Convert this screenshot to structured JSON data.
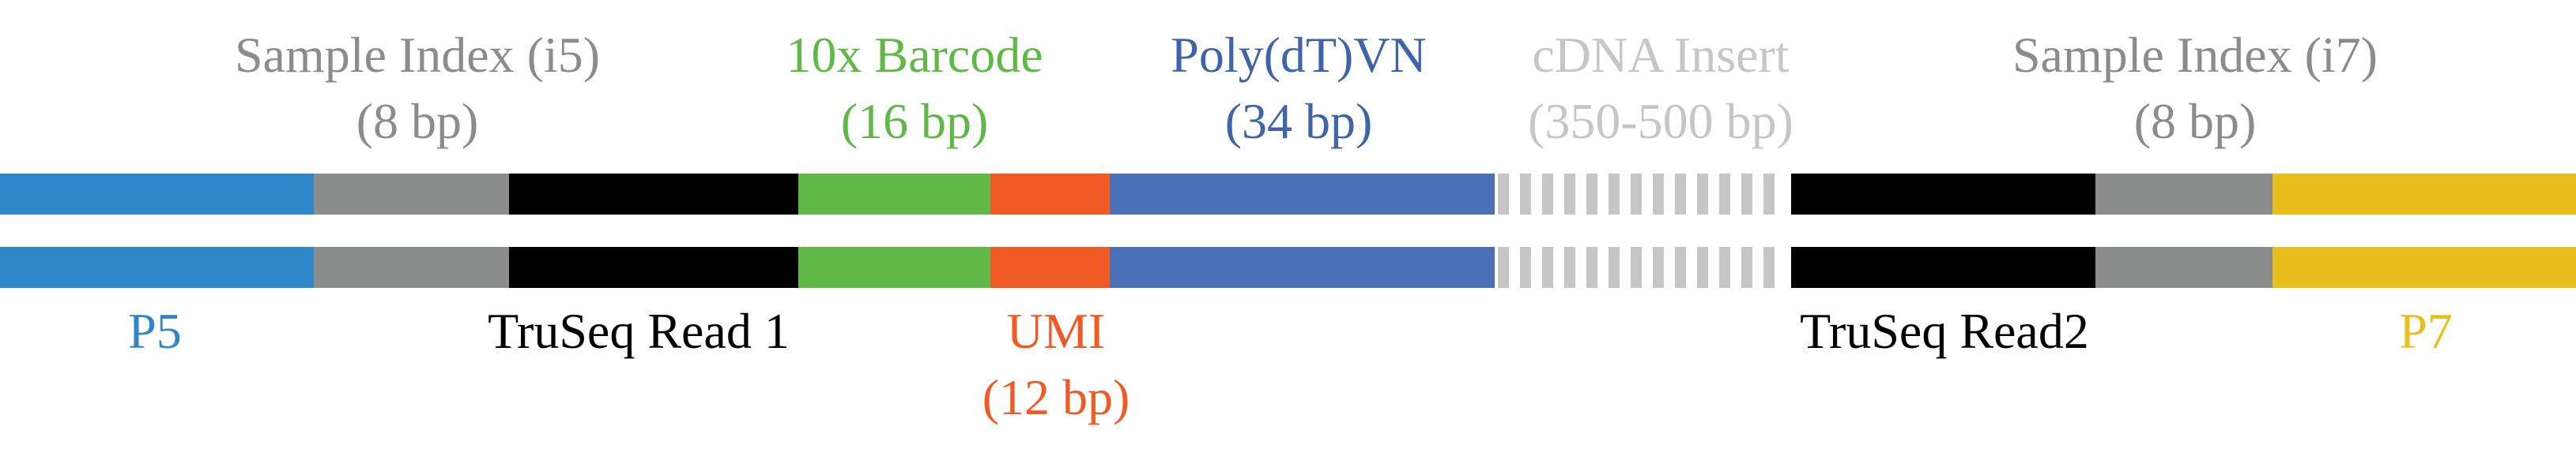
{
  "colors": {
    "p5": "#2f86c8",
    "index": "#8b8c8c",
    "truseq": "#000000",
    "barcode": "#60b947",
    "umi": "#f05a24",
    "polydt": "#4a71b8",
    "cdna": "#c6c6c6",
    "p7": "#e9bf1d",
    "label_index": "#8b8c8c",
    "label_barcode": "#60b947",
    "label_polydt": "#3f64a8",
    "label_cdna": "#c6c6c6",
    "label_p5": "#2f86c8",
    "label_truseq": "#000000",
    "label_umi": "#f05a24",
    "label_p7": "#e9bf1d"
  },
  "segments": [
    {
      "name": "p5",
      "color_key": "p5",
      "pattern": "solid"
    },
    {
      "name": "sample-index-i5",
      "color_key": "index",
      "pattern": "solid"
    },
    {
      "name": "truseq-read-1",
      "color_key": "truseq",
      "pattern": "solid"
    },
    {
      "name": "10x-barcode",
      "color_key": "barcode",
      "pattern": "solid"
    },
    {
      "name": "umi",
      "color_key": "umi",
      "pattern": "solid"
    },
    {
      "name": "poly-dt-vn",
      "color_key": "polydt",
      "pattern": "solid"
    },
    {
      "name": "cdna-insert",
      "color_key": "cdna",
      "pattern": "dashed"
    },
    {
      "name": "truseq-read-2",
      "color_key": "truseq",
      "pattern": "solid"
    },
    {
      "name": "sample-index-i7",
      "color_key": "index",
      "pattern": "solid"
    },
    {
      "name": "p7",
      "color_key": "p7",
      "pattern": "solid"
    }
  ],
  "labels_top": {
    "index_i5": {
      "line1": "Sample Index (i5)",
      "line2": "(8 bp)"
    },
    "barcode": {
      "line1": "10x Barcode",
      "line2": "(16 bp)"
    },
    "polydt": {
      "line1": "Poly(dT)VN",
      "line2": "(34 bp)"
    },
    "cdna": {
      "line1": "cDNA Insert",
      "line2": "(350-500 bp)"
    },
    "index_i7": {
      "line1": "Sample Index (i7)",
      "line2": "(8 bp)"
    }
  },
  "labels_bottom": {
    "p5": {
      "line1": "P5"
    },
    "truseq1": {
      "line1": "TruSeq Read 1"
    },
    "umi": {
      "line1": "UMI",
      "line2": "(12 bp)"
    },
    "truseq2": {
      "line1": "TruSeq Read2"
    },
    "p7": {
      "line1": "P7"
    }
  }
}
